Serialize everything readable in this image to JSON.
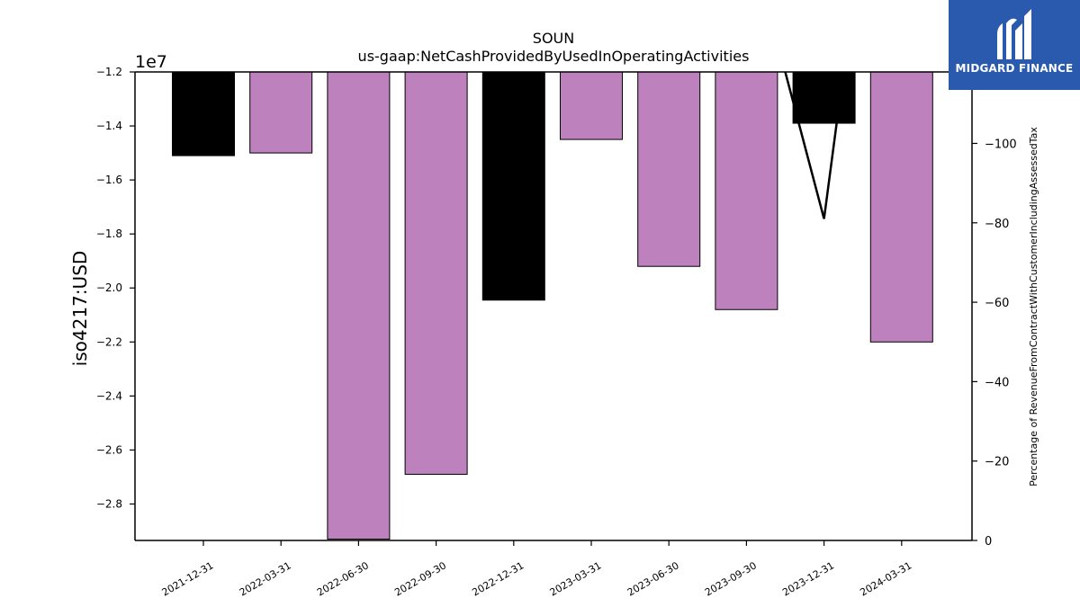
{
  "chart_data": {
    "type": "bar",
    "title": "SOUN",
    "subtitle": "us-gaap:NetCashProvidedByUsedInOperatingActivities",
    "ylabel": "iso4217:USD",
    "y_multiplier_label": "1e7",
    "y2label": "Percentage of RevenueFromContractWithCustomerIncludingAssessedTax",
    "categories": [
      "2021-12-31",
      "2022-03-31",
      "2022-06-30",
      "2022-09-30",
      "2022-12-31",
      "2023-03-31",
      "2023-06-30",
      "2023-09-30",
      "2023-12-31",
      "2024-03-31"
    ],
    "values": [
      -1.51,
      -1.5,
      -2.93,
      -2.69,
      -2.045,
      -1.45,
      -1.92,
      -2.08,
      -1.39,
      -2.2
    ],
    "bar_colors": [
      "#000000",
      "#bd82bd",
      "#bd82bd",
      "#bd82bd",
      "#000000",
      "#bd82bd",
      "#bd82bd",
      "#bd82bd",
      "#000000",
      "#bd82bd"
    ],
    "ylim": [
      -2.935,
      -1.2
    ],
    "yticks": [
      -1.2,
      -1.4,
      -1.6,
      -1.8,
      -2.0,
      -2.2,
      -2.4,
      -2.6,
      -2.8
    ],
    "ytick_labels": [
      "−1.2",
      "−1.4",
      "−1.6",
      "−1.8",
      "−2.0",
      "−2.2",
      "−2.4",
      "−2.6",
      "−2.8"
    ],
    "y2lim": [
      0,
      118
    ],
    "y2ticks": [
      0,
      20,
      40,
      60,
      80,
      100
    ],
    "y2tick_labels": [
      "0",
      "−20",
      "−40",
      "−60",
      "−80",
      "−100"
    ],
    "line_series": {
      "x_index": [
        7.5,
        8,
        8.25
      ],
      "values": [
        118,
        81,
        118
      ]
    }
  },
  "logo": {
    "text": "MIDGARD FINANCE"
  },
  "colors": {
    "black_bar": "#000000",
    "purple_bar": "#bd82bd",
    "logo_bg": "#2a5aad"
  }
}
